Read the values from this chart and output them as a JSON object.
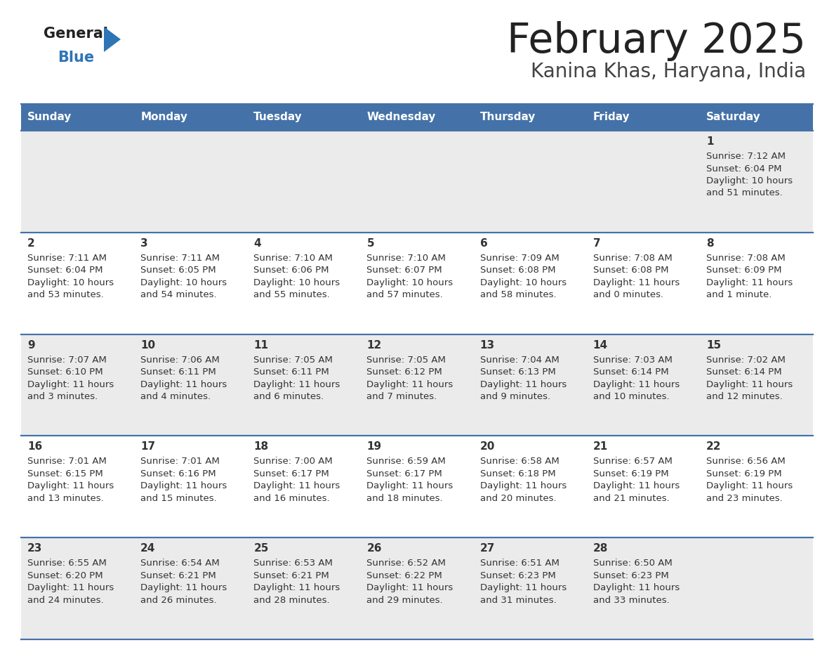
{
  "title": "February 2025",
  "subtitle": "Kanina Khas, Haryana, India",
  "header_bg_color": "#4472a8",
  "header_text_color": "#ffffff",
  "day_names": [
    "Sunday",
    "Monday",
    "Tuesday",
    "Wednesday",
    "Thursday",
    "Friday",
    "Saturday"
  ],
  "row_bg_colors": [
    "#ebebeb",
    "#ffffff"
  ],
  "cell_border_color": "#4472a8",
  "title_color": "#222222",
  "subtitle_color": "#444444",
  "day_num_color": "#333333",
  "info_color": "#333333",
  "logo_general_color": "#222222",
  "logo_blue_color": "#2e75b6",
  "calendar": [
    [
      null,
      null,
      null,
      null,
      null,
      null,
      {
        "day": "1",
        "sunrise": "7:12 AM",
        "sunset": "6:04 PM",
        "daylight": "10 hours",
        "daylight2": "and 51 minutes."
      }
    ],
    [
      {
        "day": "2",
        "sunrise": "7:11 AM",
        "sunset": "6:04 PM",
        "daylight": "10 hours",
        "daylight2": "and 53 minutes."
      },
      {
        "day": "3",
        "sunrise": "7:11 AM",
        "sunset": "6:05 PM",
        "daylight": "10 hours",
        "daylight2": "and 54 minutes."
      },
      {
        "day": "4",
        "sunrise": "7:10 AM",
        "sunset": "6:06 PM",
        "daylight": "10 hours",
        "daylight2": "and 55 minutes."
      },
      {
        "day": "5",
        "sunrise": "7:10 AM",
        "sunset": "6:07 PM",
        "daylight": "10 hours",
        "daylight2": "and 57 minutes."
      },
      {
        "day": "6",
        "sunrise": "7:09 AM",
        "sunset": "6:08 PM",
        "daylight": "10 hours",
        "daylight2": "and 58 minutes."
      },
      {
        "day": "7",
        "sunrise": "7:08 AM",
        "sunset": "6:08 PM",
        "daylight": "11 hours",
        "daylight2": "and 0 minutes."
      },
      {
        "day": "8",
        "sunrise": "7:08 AM",
        "sunset": "6:09 PM",
        "daylight": "11 hours",
        "daylight2": "and 1 minute."
      }
    ],
    [
      {
        "day": "9",
        "sunrise": "7:07 AM",
        "sunset": "6:10 PM",
        "daylight": "11 hours",
        "daylight2": "and 3 minutes."
      },
      {
        "day": "10",
        "sunrise": "7:06 AM",
        "sunset": "6:11 PM",
        "daylight": "11 hours",
        "daylight2": "and 4 minutes."
      },
      {
        "day": "11",
        "sunrise": "7:05 AM",
        "sunset": "6:11 PM",
        "daylight": "11 hours",
        "daylight2": "and 6 minutes."
      },
      {
        "day": "12",
        "sunrise": "7:05 AM",
        "sunset": "6:12 PM",
        "daylight": "11 hours",
        "daylight2": "and 7 minutes."
      },
      {
        "day": "13",
        "sunrise": "7:04 AM",
        "sunset": "6:13 PM",
        "daylight": "11 hours",
        "daylight2": "and 9 minutes."
      },
      {
        "day": "14",
        "sunrise": "7:03 AM",
        "sunset": "6:14 PM",
        "daylight": "11 hours",
        "daylight2": "and 10 minutes."
      },
      {
        "day": "15",
        "sunrise": "7:02 AM",
        "sunset": "6:14 PM",
        "daylight": "11 hours",
        "daylight2": "and 12 minutes."
      }
    ],
    [
      {
        "day": "16",
        "sunrise": "7:01 AM",
        "sunset": "6:15 PM",
        "daylight": "11 hours",
        "daylight2": "and 13 minutes."
      },
      {
        "day": "17",
        "sunrise": "7:01 AM",
        "sunset": "6:16 PM",
        "daylight": "11 hours",
        "daylight2": "and 15 minutes."
      },
      {
        "day": "18",
        "sunrise": "7:00 AM",
        "sunset": "6:17 PM",
        "daylight": "11 hours",
        "daylight2": "and 16 minutes."
      },
      {
        "day": "19",
        "sunrise": "6:59 AM",
        "sunset": "6:17 PM",
        "daylight": "11 hours",
        "daylight2": "and 18 minutes."
      },
      {
        "day": "20",
        "sunrise": "6:58 AM",
        "sunset": "6:18 PM",
        "daylight": "11 hours",
        "daylight2": "and 20 minutes."
      },
      {
        "day": "21",
        "sunrise": "6:57 AM",
        "sunset": "6:19 PM",
        "daylight": "11 hours",
        "daylight2": "and 21 minutes."
      },
      {
        "day": "22",
        "sunrise": "6:56 AM",
        "sunset": "6:19 PM",
        "daylight": "11 hours",
        "daylight2": "and 23 minutes."
      }
    ],
    [
      {
        "day": "23",
        "sunrise": "6:55 AM",
        "sunset": "6:20 PM",
        "daylight": "11 hours",
        "daylight2": "and 24 minutes."
      },
      {
        "day": "24",
        "sunrise": "6:54 AM",
        "sunset": "6:21 PM",
        "daylight": "11 hours",
        "daylight2": "and 26 minutes."
      },
      {
        "day": "25",
        "sunrise": "6:53 AM",
        "sunset": "6:21 PM",
        "daylight": "11 hours",
        "daylight2": "and 28 minutes."
      },
      {
        "day": "26",
        "sunrise": "6:52 AM",
        "sunset": "6:22 PM",
        "daylight": "11 hours",
        "daylight2": "and 29 minutes."
      },
      {
        "day": "27",
        "sunrise": "6:51 AM",
        "sunset": "6:23 PM",
        "daylight": "11 hours",
        "daylight2": "and 31 minutes."
      },
      {
        "day": "28",
        "sunrise": "6:50 AM",
        "sunset": "6:23 PM",
        "daylight": "11 hours",
        "daylight2": "and 33 minutes."
      },
      null
    ]
  ]
}
